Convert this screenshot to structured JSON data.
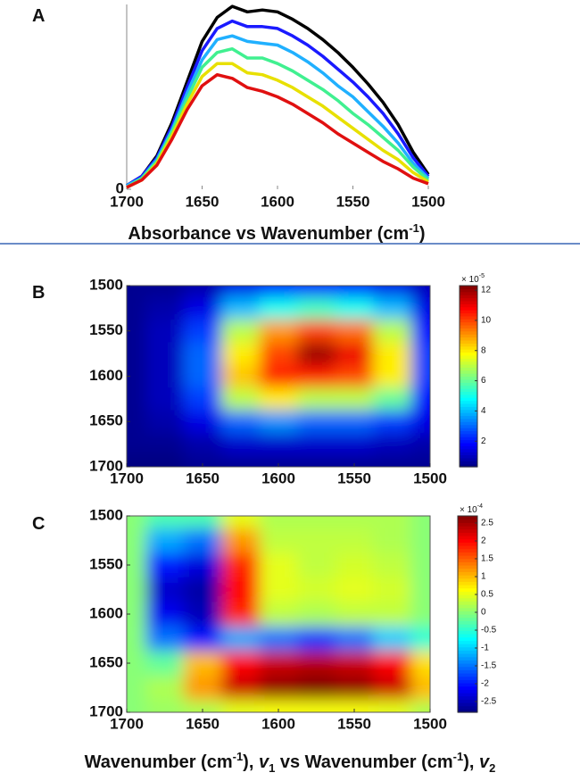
{
  "chart_data": [
    {
      "type": "line",
      "panel": "A",
      "x_label": [
        "Absorbance vs Wavenumber (cm",
        "-1",
        ")"
      ],
      "x": [
        1700,
        1690,
        1680,
        1670,
        1660,
        1650,
        1640,
        1630,
        1620,
        1610,
        1600,
        1590,
        1580,
        1570,
        1560,
        1550,
        1540,
        1530,
        1520,
        1510,
        1500
      ],
      "xlim": [
        1700,
        1500
      ],
      "xticks": [
        1700,
        1650,
        1600,
        1550,
        1500
      ],
      "ylim": [
        0,
        1
      ],
      "yticks": [
        0
      ],
      "series": [
        {
          "color": "#000000",
          "values": [
            0.02,
            0.07,
            0.18,
            0.36,
            0.58,
            0.8,
            0.93,
            0.99,
            0.96,
            0.97,
            0.96,
            0.92,
            0.87,
            0.81,
            0.74,
            0.66,
            0.57,
            0.47,
            0.35,
            0.2,
            0.08
          ]
        },
        {
          "color": "#1a1aff",
          "values": [
            0.02,
            0.07,
            0.17,
            0.34,
            0.55,
            0.75,
            0.87,
            0.91,
            0.88,
            0.88,
            0.87,
            0.83,
            0.78,
            0.72,
            0.65,
            0.58,
            0.5,
            0.41,
            0.3,
            0.17,
            0.07
          ]
        },
        {
          "color": "#20b0ff",
          "values": [
            0.02,
            0.06,
            0.16,
            0.32,
            0.52,
            0.7,
            0.81,
            0.83,
            0.8,
            0.79,
            0.78,
            0.74,
            0.69,
            0.63,
            0.56,
            0.5,
            0.42,
            0.34,
            0.25,
            0.14,
            0.06
          ]
        },
        {
          "color": "#40f090",
          "values": [
            0.01,
            0.06,
            0.15,
            0.31,
            0.49,
            0.66,
            0.74,
            0.76,
            0.71,
            0.71,
            0.68,
            0.64,
            0.59,
            0.54,
            0.48,
            0.41,
            0.35,
            0.28,
            0.21,
            0.12,
            0.05
          ]
        },
        {
          "color": "#e8e000",
          "values": [
            0.01,
            0.05,
            0.14,
            0.29,
            0.46,
            0.61,
            0.68,
            0.68,
            0.63,
            0.62,
            0.59,
            0.55,
            0.5,
            0.45,
            0.39,
            0.33,
            0.27,
            0.21,
            0.16,
            0.09,
            0.04
          ]
        },
        {
          "color": "#e01010",
          "values": [
            0.01,
            0.05,
            0.13,
            0.27,
            0.43,
            0.56,
            0.62,
            0.6,
            0.55,
            0.53,
            0.5,
            0.46,
            0.41,
            0.36,
            0.3,
            0.25,
            0.2,
            0.15,
            0.11,
            0.06,
            0.03
          ]
        }
      ]
    },
    {
      "type": "contour",
      "panel": "B",
      "x": [
        1700,
        1675,
        1650,
        1625,
        1600,
        1575,
        1550,
        1525,
        1500
      ],
      "y": [
        1500,
        1525,
        1550,
        1575,
        1600,
        1625,
        1650,
        1675,
        1700
      ],
      "xlim": [
        1700,
        1500
      ],
      "xticks": [
        1700,
        1650,
        1600,
        1550,
        1500
      ],
      "ylim": [
        1500,
        1700
      ],
      "yticks": [
        1500,
        1550,
        1600,
        1650,
        1700
      ],
      "z": [
        [
          0.5,
          0.5,
          0.8,
          1.5,
          2,
          2,
          2,
          1.5,
          1
        ],
        [
          0.5,
          0.8,
          1.5,
          4,
          5,
          5.5,
          5,
          4,
          1.5
        ],
        [
          0.5,
          1,
          2.5,
          7,
          9,
          10,
          9.5,
          7,
          2
        ],
        [
          0.5,
          1,
          3,
          8,
          10,
          12,
          11,
          8,
          2.5
        ],
        [
          0.5,
          1,
          3,
          8.5,
          10.5,
          10.5,
          10,
          8,
          2.5
        ],
        [
          0.5,
          1,
          2.5,
          7,
          8,
          7,
          7,
          6,
          2
        ],
        [
          0.5,
          0.8,
          1.5,
          3,
          3.5,
          3,
          3,
          2.5,
          1.5
        ],
        [
          0.5,
          0.5,
          0.8,
          1.2,
          1.2,
          1.2,
          1.2,
          1,
          0.8
        ],
        [
          0.3,
          0.3,
          0.5,
          0.5,
          0.5,
          0.5,
          0.5,
          0.5,
          0.5
        ]
      ],
      "zlim": [
        0.3,
        12.3
      ],
      "zticks": [
        2,
        4,
        6,
        8,
        10,
        12
      ],
      "colorbar_scale": [
        "× 10",
        "-5"
      ]
    },
    {
      "type": "contour",
      "panel": "C",
      "x": [
        1700,
        1675,
        1650,
        1625,
        1600,
        1575,
        1550,
        1525,
        1500
      ],
      "y": [
        1500,
        1525,
        1550,
        1575,
        1600,
        1625,
        1650,
        1675,
        1700
      ],
      "xlim": [
        1700,
        1500
      ],
      "xticks": [
        1700,
        1650,
        1600,
        1550,
        1500
      ],
      "ylim": [
        1500,
        1700
      ],
      "yticks": [
        1500,
        1550,
        1600,
        1650,
        1700
      ],
      "z": [
        [
          0,
          -0.3,
          -0.3,
          0.5,
          0.2,
          0.2,
          0.2,
          0.2,
          0
        ],
        [
          0,
          -1.2,
          -1.5,
          1.2,
          0.3,
          0.3,
          0.3,
          0.2,
          0
        ],
        [
          0,
          -2,
          -2.3,
          1.8,
          0.5,
          0.3,
          0.4,
          0.3,
          0
        ],
        [
          0,
          -2.4,
          -2.6,
          2,
          0.5,
          0.4,
          0.5,
          0.4,
          0
        ],
        [
          0,
          -2.2,
          -2.5,
          1.8,
          0.3,
          0.2,
          0.3,
          0.3,
          0
        ],
        [
          0,
          -1.5,
          -2,
          -1.2,
          -1.5,
          -1.8,
          -1.5,
          -1,
          -0.5
        ],
        [
          0,
          -0.2,
          1,
          2,
          2.3,
          2.4,
          2.3,
          2,
          0.8
        ],
        [
          0,
          0.2,
          1.2,
          2.3,
          2.6,
          2.7,
          2.6,
          2.3,
          1
        ],
        [
          0,
          0.1,
          0.2,
          0.5,
          0.6,
          0.6,
          0.6,
          0.5,
          0.2
        ]
      ],
      "zlim": [
        -2.8,
        2.7
      ],
      "zticks": [
        -2.5,
        -2,
        -1.5,
        -1,
        -0.5,
        0,
        0.5,
        1,
        1.5,
        2,
        2.5
      ],
      "colorbar_scale": [
        "× 10",
        "-4"
      ]
    }
  ],
  "x_label": [
    "Wavenumber (cm",
    "-1",
    "), ",
    "v",
    "1",
    " vs Wavenumber (cm",
    "-1",
    "), ",
    "v",
    "2"
  ]
}
